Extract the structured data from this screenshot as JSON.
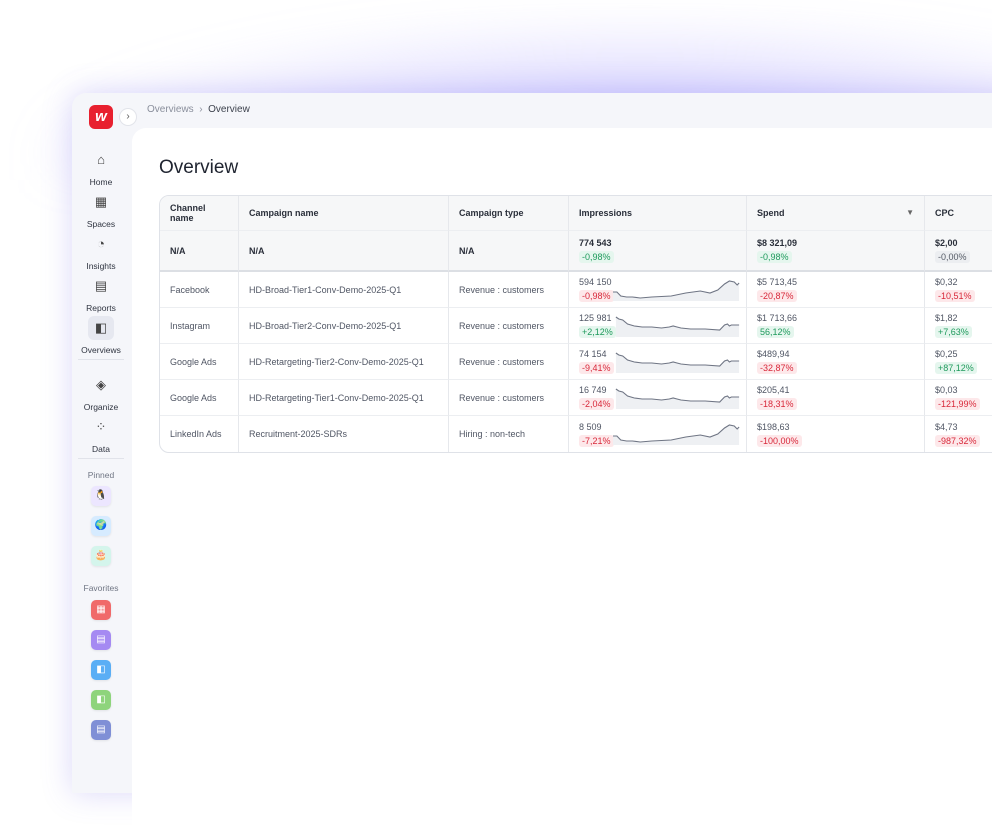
{
  "breadcrumb": {
    "parent": "Overviews",
    "current": "Overview"
  },
  "logo": "w",
  "nav": [
    {
      "label": "Home",
      "icon": "home-icon",
      "glyph": "⌂"
    },
    {
      "label": "Spaces",
      "icon": "spaces-icon",
      "glyph": "▦"
    },
    {
      "label": "Insights",
      "icon": "insights-icon",
      "glyph": "◔"
    },
    {
      "label": "Reports",
      "icon": "reports-icon",
      "glyph": "▤"
    },
    {
      "label": "Overviews",
      "icon": "overviews-icon",
      "glyph": "◧",
      "active": true
    },
    {
      "label": "Organize",
      "icon": "layers-icon",
      "glyph": "◈"
    },
    {
      "label": "Data",
      "icon": "data-icon",
      "glyph": "⁘"
    }
  ],
  "pinned_label": "Pinned",
  "pinned": [
    {
      "icon": "penguin-icon",
      "color": "#ece6ff",
      "glyph": "🐧"
    },
    {
      "icon": "globe-icon",
      "color": "#d6ebff",
      "glyph": "🌍"
    },
    {
      "icon": "cake-icon",
      "color": "#d4f5ec",
      "glyph": "🎂"
    }
  ],
  "favorites_label": "Favorites",
  "favorites": [
    {
      "icon": "spaces-icon",
      "color": "#f06a6a",
      "glyph": "▦"
    },
    {
      "icon": "reports-icon",
      "color": "#a58af2",
      "glyph": "▤"
    },
    {
      "icon": "overviews-icon",
      "color": "#5aaef5",
      "glyph": "◧"
    },
    {
      "icon": "overviews-icon",
      "color": "#8ed47c",
      "glyph": "◧"
    },
    {
      "icon": "reports-icon",
      "color": "#7f8fd6",
      "glyph": "▤"
    }
  ],
  "page_title": "Overview",
  "table": {
    "columns": [
      "Channel name",
      "Campaign name",
      "Campaign type",
      "Impressions",
      "Spend",
      "CPC"
    ],
    "summary": {
      "channel": "N/A",
      "campaign": "N/A",
      "type": "N/A",
      "impressions": "774 543",
      "impressions_delta": "-0,98%",
      "impressions_tone": "pos",
      "spend": "$8 321,09",
      "spend_delta": "-0,98%",
      "spend_tone": "pos",
      "cpc": "$2,00",
      "cpc_delta": "-0,00%",
      "cpc_tone": "neu"
    },
    "rows": [
      {
        "channel": "Facebook",
        "campaign": "HD-Broad-Tier1-Conv-Demo-2025-Q1",
        "type": "Revenue : customers",
        "impressions": "594 150",
        "impressions_delta": "-0,98%",
        "impressions_tone": "neg",
        "trend": "up",
        "spend": "$5 713,45",
        "spend_delta": "-20,87%",
        "spend_tone": "neg",
        "cpc": "$0,32",
        "cpc_delta": "-10,51%",
        "cpc_tone": "neg"
      },
      {
        "channel": "Instagram",
        "campaign": "HD-Broad-Tier2-Conv-Demo-2025-Q1",
        "type": "Revenue : customers",
        "impressions": "125 981",
        "impressions_delta": "+2,12%",
        "impressions_tone": "pos",
        "trend": "down",
        "spend": "$1 713,66",
        "spend_delta": "56,12%",
        "spend_tone": "pos",
        "cpc": "$1,82",
        "cpc_delta": "+7,63%",
        "cpc_tone": "pos"
      },
      {
        "channel": "Google Ads",
        "campaign": "HD-Retargeting-Tier2-Conv-Demo-2025-Q1",
        "type": "Revenue : customers",
        "impressions": "74 154",
        "impressions_delta": "-9,41%",
        "impressions_tone": "neg",
        "trend": "down",
        "spend": "$489,94",
        "spend_delta": "-32,87%",
        "spend_tone": "neg",
        "cpc": "$0,25",
        "cpc_delta": "+87,12%",
        "cpc_tone": "pos"
      },
      {
        "channel": "Google Ads",
        "campaign": "HD-Retargeting-Tier1-Conv-Demo-2025-Q1",
        "type": "Revenue : customers",
        "impressions": "16 749",
        "impressions_delta": "-2,04%",
        "impressions_tone": "neg",
        "trend": "down",
        "spend": "$205,41",
        "spend_delta": "-18,31%",
        "spend_tone": "neg",
        "cpc": "$0,03",
        "cpc_delta": "-121,99%",
        "cpc_tone": "neg"
      },
      {
        "channel": "LinkedIn Ads",
        "campaign": "Recruitment-2025-SDRs",
        "type": "Hiring : non-tech",
        "impressions": "8 509",
        "impressions_delta": "-7,21%",
        "impressions_tone": "neg",
        "trend": "up",
        "spend": "$198,63",
        "spend_delta": "-100,00%",
        "spend_tone": "neg",
        "cpc": "$4,73",
        "cpc_delta": "-987,32%",
        "cpc_tone": "neg"
      }
    ]
  }
}
